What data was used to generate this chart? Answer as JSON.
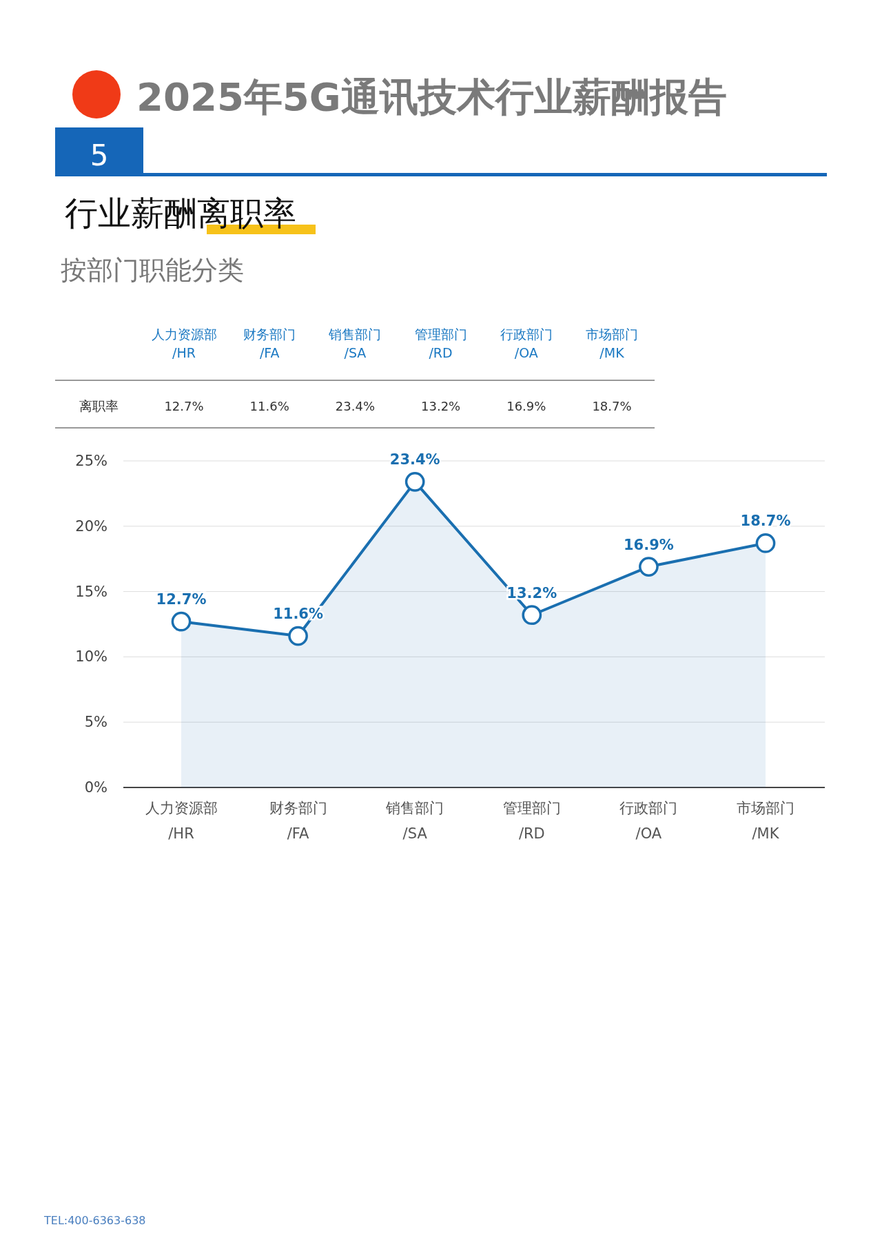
{
  "chart_data": {
    "type": "area",
    "title": "2025年5G通讯技术行业薪酬报告",
    "subtitle": "按部门职能分类",
    "ylabel": "离职率",
    "annotations": [
      "5",
      "行业薪酬离职率",
      "TEL:400-6363-638"
    ],
    "categories": [
      "人力资源部\n/HR",
      "财务部门\n/FA",
      "销售部门\n/SA",
      "管理部门\n/RD",
      "行政部门\n/OA",
      "市场部门\n/MK"
    ],
    "series": [
      {
        "color": "#1a6fb0",
        "values": [
          12.7,
          11.6,
          23.4,
          13.2,
          16.9,
          18.7
        ],
        "value_labels": [
          "12.7%",
          "11.6%",
          "23.4%",
          "13.2%",
          "16.9%",
          "18.7%"
        ]
      }
    ],
    "ylim": [
      0,
      25
    ],
    "yticks": [
      {
        "value": 0,
        "label": "0%"
      },
      {
        "value": 5,
        "label": "5%"
      },
      {
        "value": 10,
        "label": "10%"
      },
      {
        "value": 15,
        "label": "15%"
      },
      {
        "value": 20,
        "label": "20%"
      },
      {
        "value": 25,
        "label": "25%"
      }
    ],
    "grid": "y",
    "marker": "circle",
    "line_style": "solid"
  }
}
